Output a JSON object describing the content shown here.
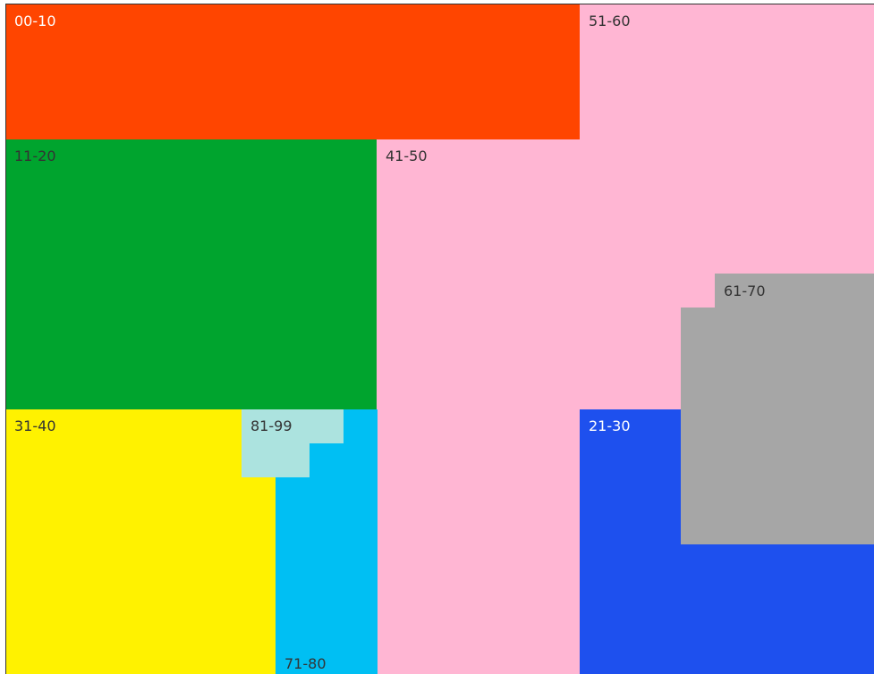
{
  "blocks": [
    {
      "id": "block-00-10",
      "label": "00-10",
      "color": "#ff4500",
      "label_color": "#ffffff"
    },
    {
      "id": "block-51-60",
      "label": "51-60",
      "color": "#ffb6d3",
      "label_color": "#333333"
    },
    {
      "id": "block-41-50",
      "label": "41-50",
      "color": "#ffb6d3",
      "label_color": "#333333"
    },
    {
      "id": "block-11-20",
      "label": "11-20",
      "color": "#00a42e",
      "label_color": "#333333"
    },
    {
      "id": "block-31-40",
      "label": "31-40",
      "color": "#fff200",
      "label_color": "#333333"
    },
    {
      "id": "block-71-80",
      "label": "71-80",
      "color": "#00bff3",
      "label_color": "#333333"
    },
    {
      "id": "block-81-99",
      "label": "81-99",
      "color": "#ace3df",
      "label_color": "#333333"
    },
    {
      "id": "block-21-30",
      "label": "21-30",
      "color": "#1e50ee",
      "label_color": "#ffffff"
    },
    {
      "id": "block-61-70",
      "label": "61-70",
      "color": "#a6a6a6",
      "label_color": "#333333"
    }
  ]
}
